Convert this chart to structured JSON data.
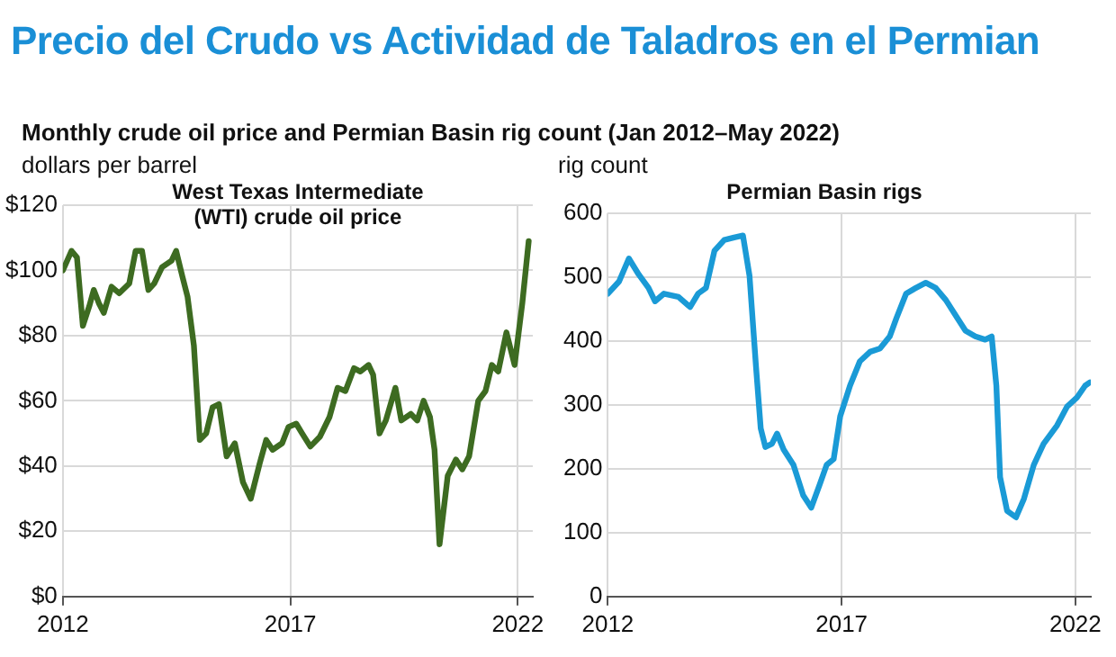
{
  "chart_data": [
    {
      "type": "line",
      "title": "Precio del Crudo vs Actividad de Taladros en el Permian",
      "subtitle": "Monthly crude oil price and Permian Basin rig count (Jan 2012–May 2022)",
      "ylabel": "dollars per barrel",
      "annotations": [
        "West Texas Intermediate\n(WTI) crude oil price"
      ],
      "marker": "none",
      "grid": true,
      "xlim": [
        2012,
        2022.33
      ],
      "xticks": [
        2012,
        2017,
        2022
      ],
      "ylim": [
        0,
        120
      ],
      "yticks": [
        {
          "value": 0,
          "label": "$0"
        },
        {
          "value": 20,
          "label": "$20"
        },
        {
          "value": 40,
          "label": "$40"
        },
        {
          "value": 60,
          "label": "$60"
        },
        {
          "value": 80,
          "label": "$80"
        },
        {
          "value": 100,
          "label": "$100"
        },
        {
          "value": 120,
          "label": "$120"
        }
      ],
      "series": [
        {
          "color": "#3d6b21",
          "x": [
            2012.0,
            2012.19,
            2012.31,
            2012.44,
            2012.58,
            2012.68,
            2012.79,
            2012.9,
            2013.07,
            2013.24,
            2013.46,
            2013.6,
            2013.74,
            2013.88,
            2014.01,
            2014.18,
            2014.39,
            2014.49,
            2014.63,
            2014.74,
            2014.88,
            2015.01,
            2015.15,
            2015.29,
            2015.43,
            2015.6,
            2015.78,
            2015.96,
            2016.13,
            2016.33,
            2016.47,
            2016.61,
            2016.82,
            2016.96,
            2017.13,
            2017.26,
            2017.44,
            2017.65,
            2017.86,
            2018.04,
            2018.21,
            2018.4,
            2018.54,
            2018.72,
            2018.82,
            2018.96,
            2019.1,
            2019.31,
            2019.44,
            2019.65,
            2019.79,
            2019.93,
            2020.07,
            2020.17,
            2020.28,
            2020.46,
            2020.64,
            2020.78,
            2020.93,
            2021.13,
            2021.29,
            2021.43,
            2021.57,
            2021.75,
            2021.93,
            2022.1,
            2022.24
          ],
          "values": [
            100,
            106,
            104,
            83,
            89,
            94,
            90,
            87,
            95,
            93,
            96,
            106,
            106,
            94,
            96,
            101,
            103,
            106,
            98,
            92,
            77,
            48,
            50,
            58,
            59,
            43,
            47,
            35,
            30,
            41,
            48,
            45,
            47,
            52,
            53,
            50,
            46,
            49,
            55,
            64,
            63,
            70,
            69,
            71,
            68,
            50,
            54,
            64,
            54,
            56,
            54,
            60,
            55,
            45,
            16,
            37,
            42,
            39,
            43,
            60,
            63,
            71,
            69,
            81,
            71,
            90,
            109
          ]
        }
      ]
    },
    {
      "type": "line",
      "title": "Permian Basin rigs",
      "ylabel": "rig count",
      "marker": "none",
      "grid": true,
      "xlim": [
        2012,
        2022.33
      ],
      "xticks": [
        2012,
        2017,
        2022
      ],
      "ylim": [
        0,
        600
      ],
      "yticks": [
        0,
        100,
        200,
        300,
        400,
        500,
        600
      ],
      "series": [
        {
          "color": "#1a9ad6",
          "x": [
            2012.0,
            2012.24,
            2012.45,
            2012.66,
            2012.87,
            2013.01,
            2013.2,
            2013.51,
            2013.76,
            2013.93,
            2014.1,
            2014.28,
            2014.49,
            2014.7,
            2014.89,
            2015.03,
            2015.17,
            2015.27,
            2015.37,
            2015.51,
            2015.62,
            2015.76,
            2015.97,
            2016.18,
            2016.35,
            2016.54,
            2016.68,
            2016.83,
            2016.97,
            2017.18,
            2017.39,
            2017.61,
            2017.82,
            2018.03,
            2018.17,
            2018.38,
            2018.59,
            2018.8,
            2019.01,
            2019.23,
            2019.44,
            2019.65,
            2019.86,
            2020.07,
            2020.21,
            2020.31,
            2020.39,
            2020.54,
            2020.73,
            2020.9,
            2021.11,
            2021.32,
            2021.61,
            2021.82,
            2022.03,
            2022.21,
            2022.31
          ],
          "values": [
            474,
            493,
            529,
            504,
            483,
            462,
            474,
            469,
            453,
            474,
            483,
            541,
            558,
            562,
            565,
            502,
            359,
            263,
            234,
            239,
            255,
            230,
            206,
            158,
            139,
            177,
            206,
            215,
            282,
            330,
            368,
            383,
            388,
            407,
            435,
            474,
            483,
            491,
            483,
            464,
            440,
            416,
            407,
            402,
            407,
            330,
            187,
            134,
            124,
            153,
            206,
            239,
            268,
            297,
            311,
            330,
            335
          ]
        }
      ]
    }
  ]
}
